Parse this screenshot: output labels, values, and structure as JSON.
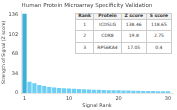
{
  "chart_data": {
    "type": "bar",
    "title": "Human Protein Microarray Specificity Validation",
    "xlabel": "Signal Rank",
    "ylabel": "Strength of Signal (Z score)",
    "x": [
      1,
      2,
      3,
      4,
      5,
      6,
      7,
      8,
      9,
      10,
      11,
      12,
      13,
      14,
      15,
      16,
      17,
      18,
      19,
      20,
      21,
      22,
      23,
      24,
      25,
      26,
      27,
      28,
      29,
      30
    ],
    "values": [
      138.46,
      19.8,
      17.05,
      14.0,
      12.0,
      10.5,
      9.5,
      8.8,
      8.2,
      7.7,
      7.2,
      6.8,
      6.4,
      6.1,
      5.8,
      5.5,
      5.2,
      5.0,
      4.8,
      4.6,
      4.4,
      4.2,
      4.0,
      3.8,
      3.6,
      3.5,
      3.3,
      3.2,
      3.1,
      3.0
    ],
    "colors": [
      "#3db0d8",
      "#6dcff6",
      "#6dcff6",
      "#6dcff6",
      "#6dcff6",
      "#6dcff6",
      "#6dcff6",
      "#6dcff6",
      "#6dcff6",
      "#6dcff6",
      "#6dcff6",
      "#6dcff6",
      "#6dcff6",
      "#6dcff6",
      "#6dcff6",
      "#6dcff6",
      "#6dcff6",
      "#6dcff6",
      "#6dcff6",
      "#6dcff6",
      "#6dcff6",
      "#6dcff6",
      "#6dcff6",
      "#6dcff6",
      "#6dcff6",
      "#6dcff6",
      "#6dcff6",
      "#6dcff6",
      "#6dcff6",
      "#6dcff6"
    ],
    "xlim": [
      0.3,
      31
    ],
    "xticks": [
      1,
      10,
      20,
      30
    ],
    "ylim": [
      0,
      142
    ],
    "yticks": [
      0,
      34,
      68,
      102,
      136
    ],
    "grid": false,
    "table": {
      "headers": [
        "Rank",
        "Protein",
        "Z score",
        "S score"
      ],
      "rows": [
        [
          "1",
          "ICOSLG",
          "138.46",
          "118.65"
        ],
        [
          "2",
          "CDK8",
          "19.8",
          "2.75"
        ],
        [
          "3",
          "RPS6KA4",
          "17.05",
          "0.4"
        ]
      ]
    }
  }
}
